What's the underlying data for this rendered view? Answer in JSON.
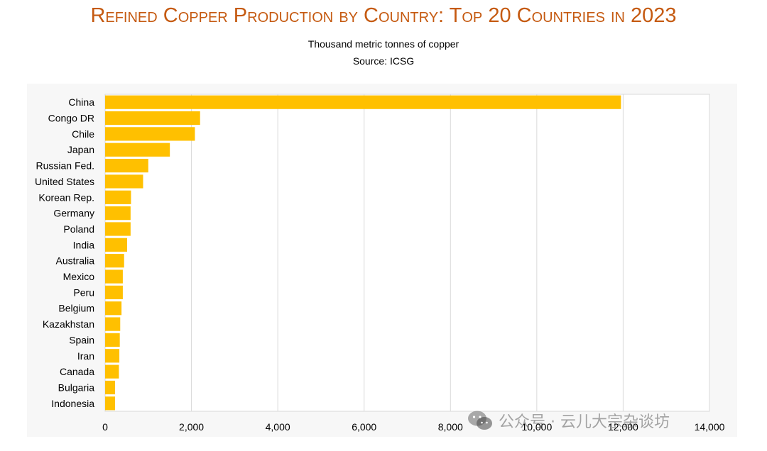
{
  "header": {
    "title": "Refined Copper Production by Country: Top 20 Countries in 2023",
    "subtitle": "Thousand metric tonnes of copper",
    "source": "Source: ICSG"
  },
  "watermark": {
    "text": "公众号 · 云儿大宗杂谈坊",
    "icon": "wechat-icon"
  },
  "colors": {
    "bar": "#FFC000",
    "title": "#C55A11",
    "grid": "#d9d9d9"
  },
  "chart_data": {
    "type": "bar",
    "orientation": "horizontal",
    "title": "Refined Copper Production by Country: Top 20 Countries in 2023",
    "subtitle": "Thousand metric tonnes of copper",
    "xlabel": "",
    "ylabel": "",
    "xlim": [
      0,
      14000
    ],
    "xticks": [
      0,
      2000,
      4000,
      6000,
      8000,
      10000,
      12000,
      14000
    ],
    "xtick_labels": [
      "0",
      "2,000",
      "4,000",
      "6,000",
      "8,000",
      "10,000",
      "12,000",
      "14,000"
    ],
    "grid": "vertical",
    "legend": "none",
    "categories": [
      "China",
      "Congo DR",
      "Chile",
      "Japan",
      "Russian Fed.",
      "United States",
      "Korean Rep.",
      "Germany",
      "Poland",
      "India",
      "Australia",
      "Mexico",
      "Peru",
      "Belgium",
      "Kazakhstan",
      "Spain",
      "Iran",
      "Canada",
      "Bulgaria",
      "Indonesia"
    ],
    "values": [
      11950,
      2200,
      2080,
      1500,
      1000,
      880,
      600,
      590,
      590,
      510,
      440,
      410,
      410,
      380,
      350,
      340,
      330,
      320,
      230,
      230
    ]
  }
}
